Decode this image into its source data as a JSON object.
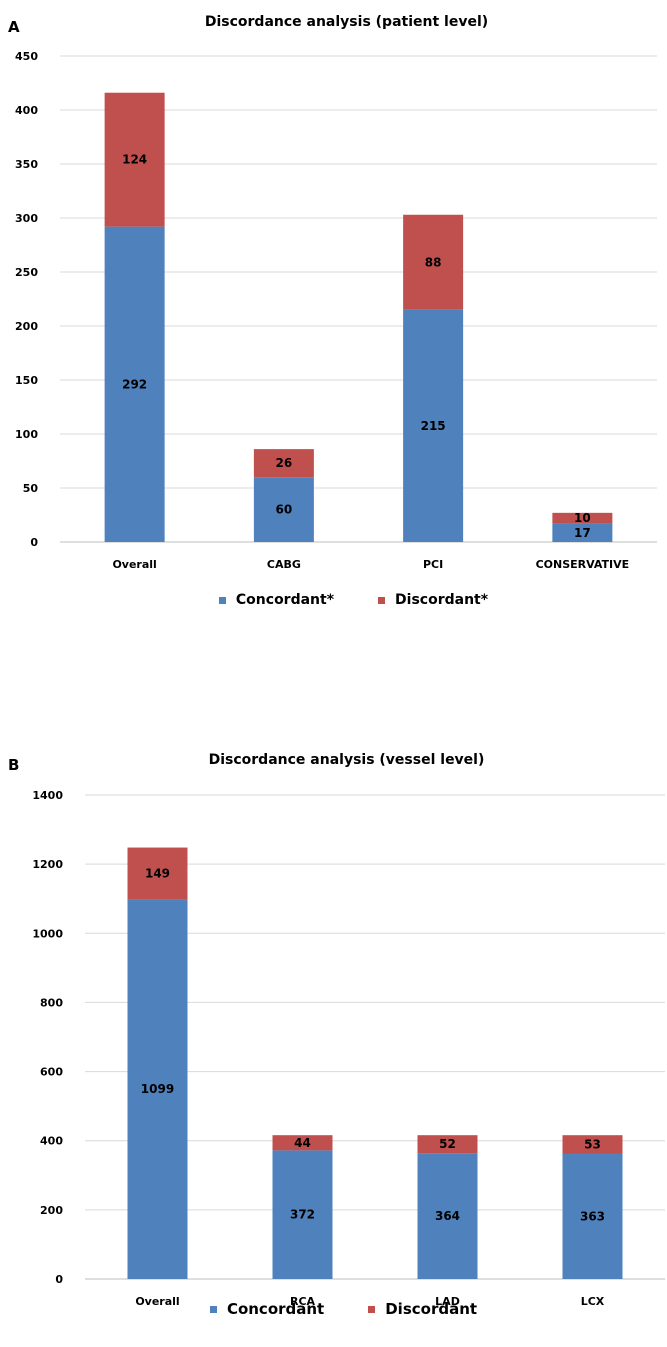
{
  "colors": {
    "concordant": "#4f81bd",
    "discordant": "#c0504d",
    "grid": "#d9d9d9"
  },
  "chart_data": [
    {
      "panel_label": "A",
      "type": "bar",
      "stacked": true,
      "title": "Discordance analysis (patient level)",
      "categories": [
        "Overall",
        "CABG",
        "PCI",
        "CONSERVATIVE"
      ],
      "series": [
        {
          "name": "Concordant*",
          "values": [
            292,
            60,
            215,
            17
          ]
        },
        {
          "name": "Discordant*",
          "values": [
            124,
            26,
            88,
            10
          ]
        }
      ],
      "ylim": [
        0,
        450
      ],
      "yticks": [
        0,
        50,
        100,
        150,
        200,
        250,
        300,
        350,
        400,
        450
      ],
      "xlabel": "",
      "ylabel": "",
      "grid": true,
      "legend_position": "bottom"
    },
    {
      "panel_label": "B",
      "type": "bar",
      "stacked": true,
      "title": "Discordance analysis (vessel level)",
      "categories": [
        "Overall",
        "RCA",
        "LAD",
        "LCX"
      ],
      "series": [
        {
          "name": "Concordant",
          "values": [
            1099,
            372,
            364,
            363
          ]
        },
        {
          "name": "Discordant",
          "values": [
            149,
            44,
            52,
            53
          ]
        }
      ],
      "ylim": [
        0,
        1400
      ],
      "yticks": [
        0,
        200,
        400,
        600,
        800,
        1000,
        1200,
        1400
      ],
      "xlabel": "",
      "ylabel": "",
      "grid": true,
      "legend_position": "bottom"
    }
  ]
}
